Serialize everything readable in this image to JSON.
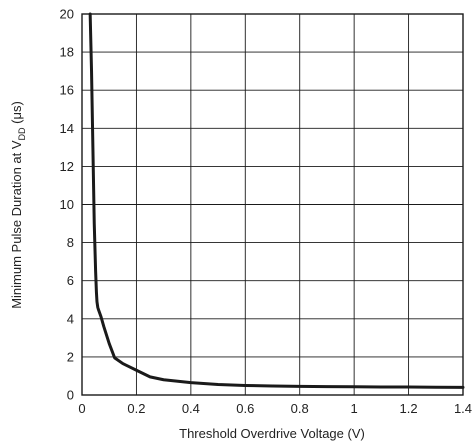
{
  "chart_data": {
    "type": "line",
    "title": "",
    "xlabel": "Threshold Overdrive Voltage (V)",
    "ylabel": {
      "main": "Minimum Pulse Duration at V",
      "subscript": "DD",
      "suffix": " (μs)"
    },
    "xlim": [
      0,
      1.4
    ],
    "ylim": [
      0,
      20
    ],
    "x_ticks": [
      "0",
      "0.2",
      "0.4",
      "0.6",
      "0.8",
      "1",
      "1.2",
      "1.4"
    ],
    "y_ticks": [
      "0",
      "2",
      "4",
      "6",
      "8",
      "10",
      "12",
      "14",
      "16",
      "18",
      "20"
    ],
    "grid": true,
    "series": [
      {
        "color": "#1a1a1a",
        "x": [
          0.03,
          0.035,
          0.04,
          0.045,
          0.05,
          0.053,
          0.055,
          0.058,
          0.06,
          0.07,
          0.08,
          0.1,
          0.12,
          0.15,
          0.2,
          0.25,
          0.3,
          0.4,
          0.5,
          0.6,
          0.7,
          0.8,
          0.9,
          1.0,
          1.1,
          1.2,
          1.3,
          1.4
        ],
        "y": [
          20,
          17,
          13,
          9,
          6.5,
          5.4,
          4.9,
          4.6,
          4.5,
          4.1,
          3.6,
          2.7,
          1.95,
          1.65,
          1.3,
          0.95,
          0.8,
          0.65,
          0.55,
          0.5,
          0.47,
          0.45,
          0.44,
          0.43,
          0.42,
          0.42,
          0.41,
          0.4
        ]
      }
    ]
  }
}
